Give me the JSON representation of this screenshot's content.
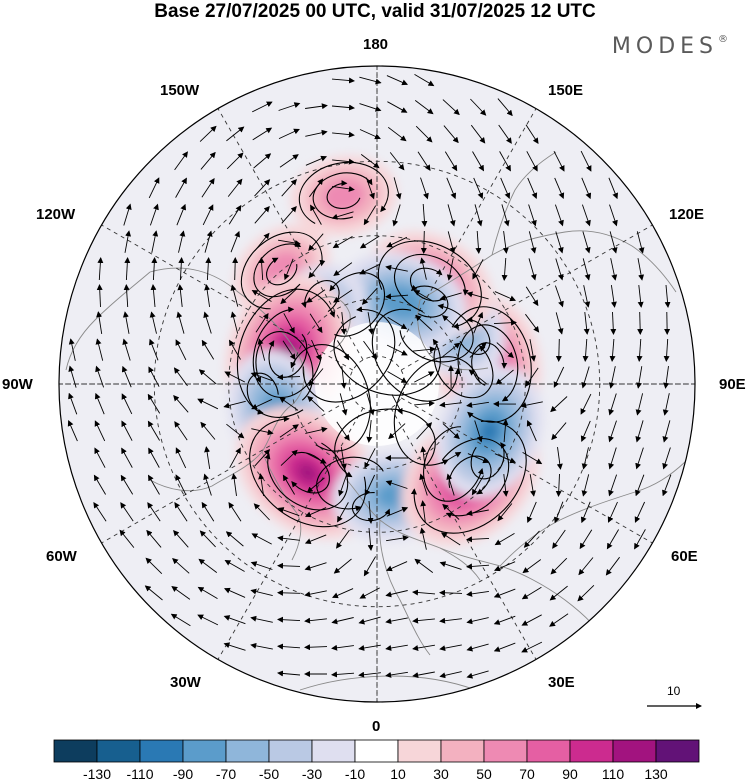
{
  "title": "Base 27/07/2025 00 UTC, valid 31/07/2025 12 UTC",
  "brand": "MODES",
  "brand_mark": "®",
  "longitude_labels": {
    "lon_180": "180",
    "lon_150e": "150E",
    "lon_120e": "120E",
    "lon_90e": "90E",
    "lon_60e": "60E",
    "lon_30e": "30E",
    "lon_0": "0",
    "lon_30w": "30W",
    "lon_60w": "60W",
    "lon_90w": "90W",
    "lon_120w": "120W",
    "lon_150w": "150W"
  },
  "wind_reference": {
    "value": "10"
  },
  "colorbar": {
    "colors": [
      "#0d3d5e",
      "#175f8f",
      "#2a79b4",
      "#5b9ccb",
      "#8fb6da",
      "#bac9e4",
      "#dfdff0",
      "#ffffff",
      "#f7d6d9",
      "#f3b1c0",
      "#ee8ab3",
      "#e55fa3",
      "#cc2b8f",
      "#a2137f",
      "#621277"
    ],
    "tick_labels": [
      "-130",
      "-110",
      "-90",
      "-70",
      "-50",
      "-30",
      "-10",
      "10",
      "30",
      "50",
      "70",
      "90",
      "110",
      "130"
    ]
  },
  "anomaly_centers": [
    {
      "id": "a1",
      "sign": "positive",
      "lon": 100,
      "lat": 51,
      "max": 95
    },
    {
      "id": "a2",
      "sign": "negative",
      "lon": 128,
      "lat": 56,
      "max": -75
    },
    {
      "id": "a3",
      "sign": "positive",
      "lon": 152,
      "lat": 51,
      "max": 85
    },
    {
      "id": "a4",
      "sign": "negative",
      "lon": 163,
      "lat": 60,
      "max": -85
    },
    {
      "id": "a5",
      "sign": "positive",
      "lon": -170,
      "lat": 28,
      "max": 60
    },
    {
      "id": "a6",
      "sign": "positive",
      "lon": -140,
      "lat": 40,
      "max": 60
    },
    {
      "id": "a7",
      "sign": "negative",
      "lon": -134,
      "lat": 58,
      "max": -80
    },
    {
      "id": "a8",
      "sign": "positive",
      "lon": -109,
      "lat": 57,
      "max": 115
    },
    {
      "id": "a9",
      "sign": "negative",
      "lon": -73,
      "lat": 54,
      "max": -85
    },
    {
      "id": "a10",
      "sign": "positive",
      "lon": -38,
      "lat": 51,
      "max": 110
    },
    {
      "id": "a11",
      "sign": "negative",
      "lon": 8,
      "lat": 51,
      "max": -75
    },
    {
      "id": "a12",
      "sign": "positive",
      "lon": 45,
      "lat": 45,
      "max": 110
    },
    {
      "id": "a13",
      "sign": "negative",
      "lon": 67,
      "lat": 48,
      "max": -90
    }
  ]
}
